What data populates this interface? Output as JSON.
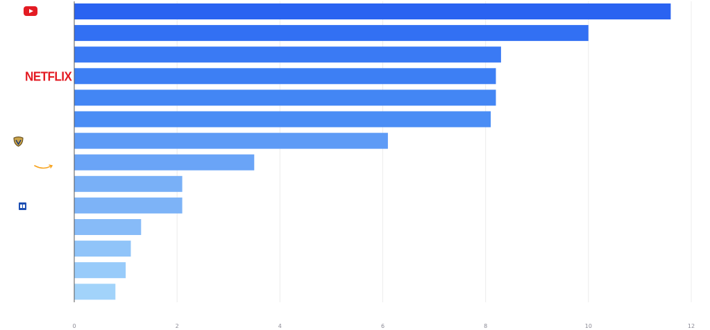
{
  "chart_data": {
    "type": "bar",
    "orientation": "horizontal",
    "title": "",
    "xlabel": "",
    "ylabel": "",
    "xlim": [
      0,
      12
    ],
    "x_ticks": [
      0,
      2,
      4,
      6,
      8,
      10,
      12
    ],
    "grid": "vertical",
    "legend": "none",
    "values": [
      11.6,
      10.0,
      8.3,
      8.2,
      8.2,
      8.1,
      6.1,
      3.5,
      2.1,
      2.1,
      1.3,
      1.1,
      1.0,
      0.8
    ],
    "bar_colors": [
      "#2a63f1",
      "#3270f3",
      "#3a7af4",
      "#3d7ff4",
      "#4386f4",
      "#4a8df5",
      "#5e9bf6",
      "#6aa4f7",
      "#79b0f7",
      "#7db3f7",
      "#87bbf8",
      "#90c4f9",
      "#98cbfa",
      "#a2d3fa"
    ],
    "row_icons": [
      "youtube-icon",
      "",
      "",
      "netflix-icon",
      "",
      "",
      "warner-bros-icon",
      "amazon-icon",
      "",
      "box-icon",
      "",
      "",
      "",
      ""
    ],
    "logo_texts": {
      "netflix": "NETFLIX"
    },
    "colors": {
      "grid": "#ececec",
      "axis": "#555555",
      "tick_label": "#8a8a95",
      "youtube": "#e31b23",
      "netflix": "#e31b23",
      "amazon": "#f7a21b"
    }
  }
}
